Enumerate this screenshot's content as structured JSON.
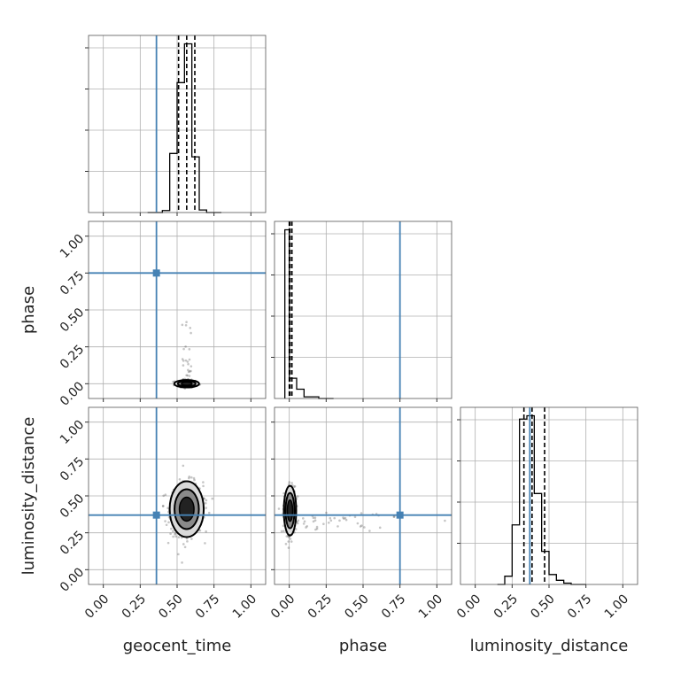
{
  "colors": {
    "truth": "#4682b4",
    "hist": "#000000",
    "grid": "#b0b0b0",
    "background": "#ffffff"
  },
  "chart_data": {
    "type": "corner",
    "parameters": [
      "geocent_time",
      "phase",
      "luminosity_distance"
    ],
    "axis_range": [
      -0.1,
      1.1
    ],
    "tick_values": [
      0.0,
      0.25,
      0.5,
      0.75,
      1.0
    ],
    "tick_labels": [
      "0.00",
      "0.25",
      "0.50",
      "0.75",
      "1.00"
    ],
    "grid": true,
    "truths": {
      "geocent_time": 0.36,
      "phase": 0.75,
      "luminosity_distance": 0.37
    },
    "histograms": {
      "geocent_time": {
        "bin_edges": [
          0.3,
          0.4,
          0.45,
          0.5,
          0.55,
          0.6,
          0.65,
          0.7,
          0.8
        ],
        "heights": [
          0,
          0.012,
          0.35,
          0.77,
          1.0,
          0.33,
          0.015,
          0
        ],
        "quantiles": [
          0.51,
          0.565,
          0.62
        ]
      },
      "phase": {
        "bin_edges": [
          -0.03,
          0.0,
          0.05,
          0.1,
          0.2,
          0.3
        ],
        "heights": [
          1.0,
          0.12,
          0.055,
          0.01,
          0
        ],
        "quantiles": [
          0.0,
          0.005,
          0.018
        ]
      },
      "luminosity_distance": {
        "bin_edges": [
          0.15,
          0.2,
          0.25,
          0.3,
          0.35,
          0.4,
          0.45,
          0.5,
          0.55,
          0.6,
          0.65,
          0.7,
          0.75
        ],
        "heights": [
          0,
          0.05,
          0.36,
          1.0,
          1.02,
          0.55,
          0.2,
          0.06,
          0.025,
          0.008,
          0,
          0
        ],
        "quantiles": [
          0.33,
          0.385,
          0.47
        ]
      }
    },
    "scatter_panels": [
      {
        "x": "geocent_time",
        "y": "phase",
        "cx": 0.565,
        "cy": 0.0,
        "sx": 0.04,
        "sy": 0.012,
        "tail_y": 0.35,
        "n": 180
      },
      {
        "x": "geocent_time",
        "y": "luminosity_distance",
        "cx": 0.565,
        "cy": 0.41,
        "sx": 0.055,
        "sy": 0.09,
        "tail_y": 0,
        "n": 520
      },
      {
        "x": "phase",
        "y": "luminosity_distance",
        "cx": 0.005,
        "cy": 0.4,
        "sx": 0.02,
        "sy": 0.08,
        "tail_y": 0,
        "n": 380
      }
    ]
  }
}
